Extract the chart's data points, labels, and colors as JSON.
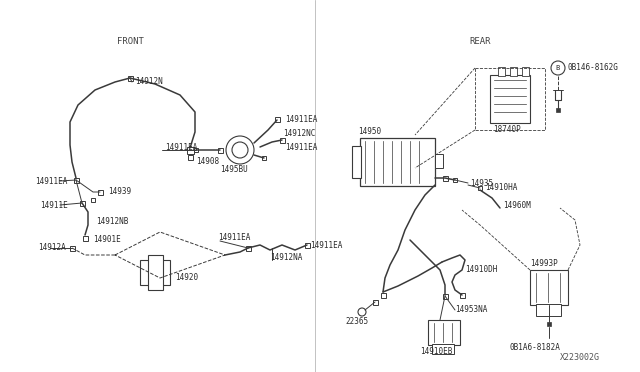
{
  "bg_color": "#ffffff",
  "lc": "#3a3a3a",
  "tc": "#2a2a2a",
  "front_label": "FRONT",
  "rear_label": "REAR",
  "diagram_id": "X223002G",
  "figw": 6.4,
  "figh": 3.72,
  "dpi": 100
}
